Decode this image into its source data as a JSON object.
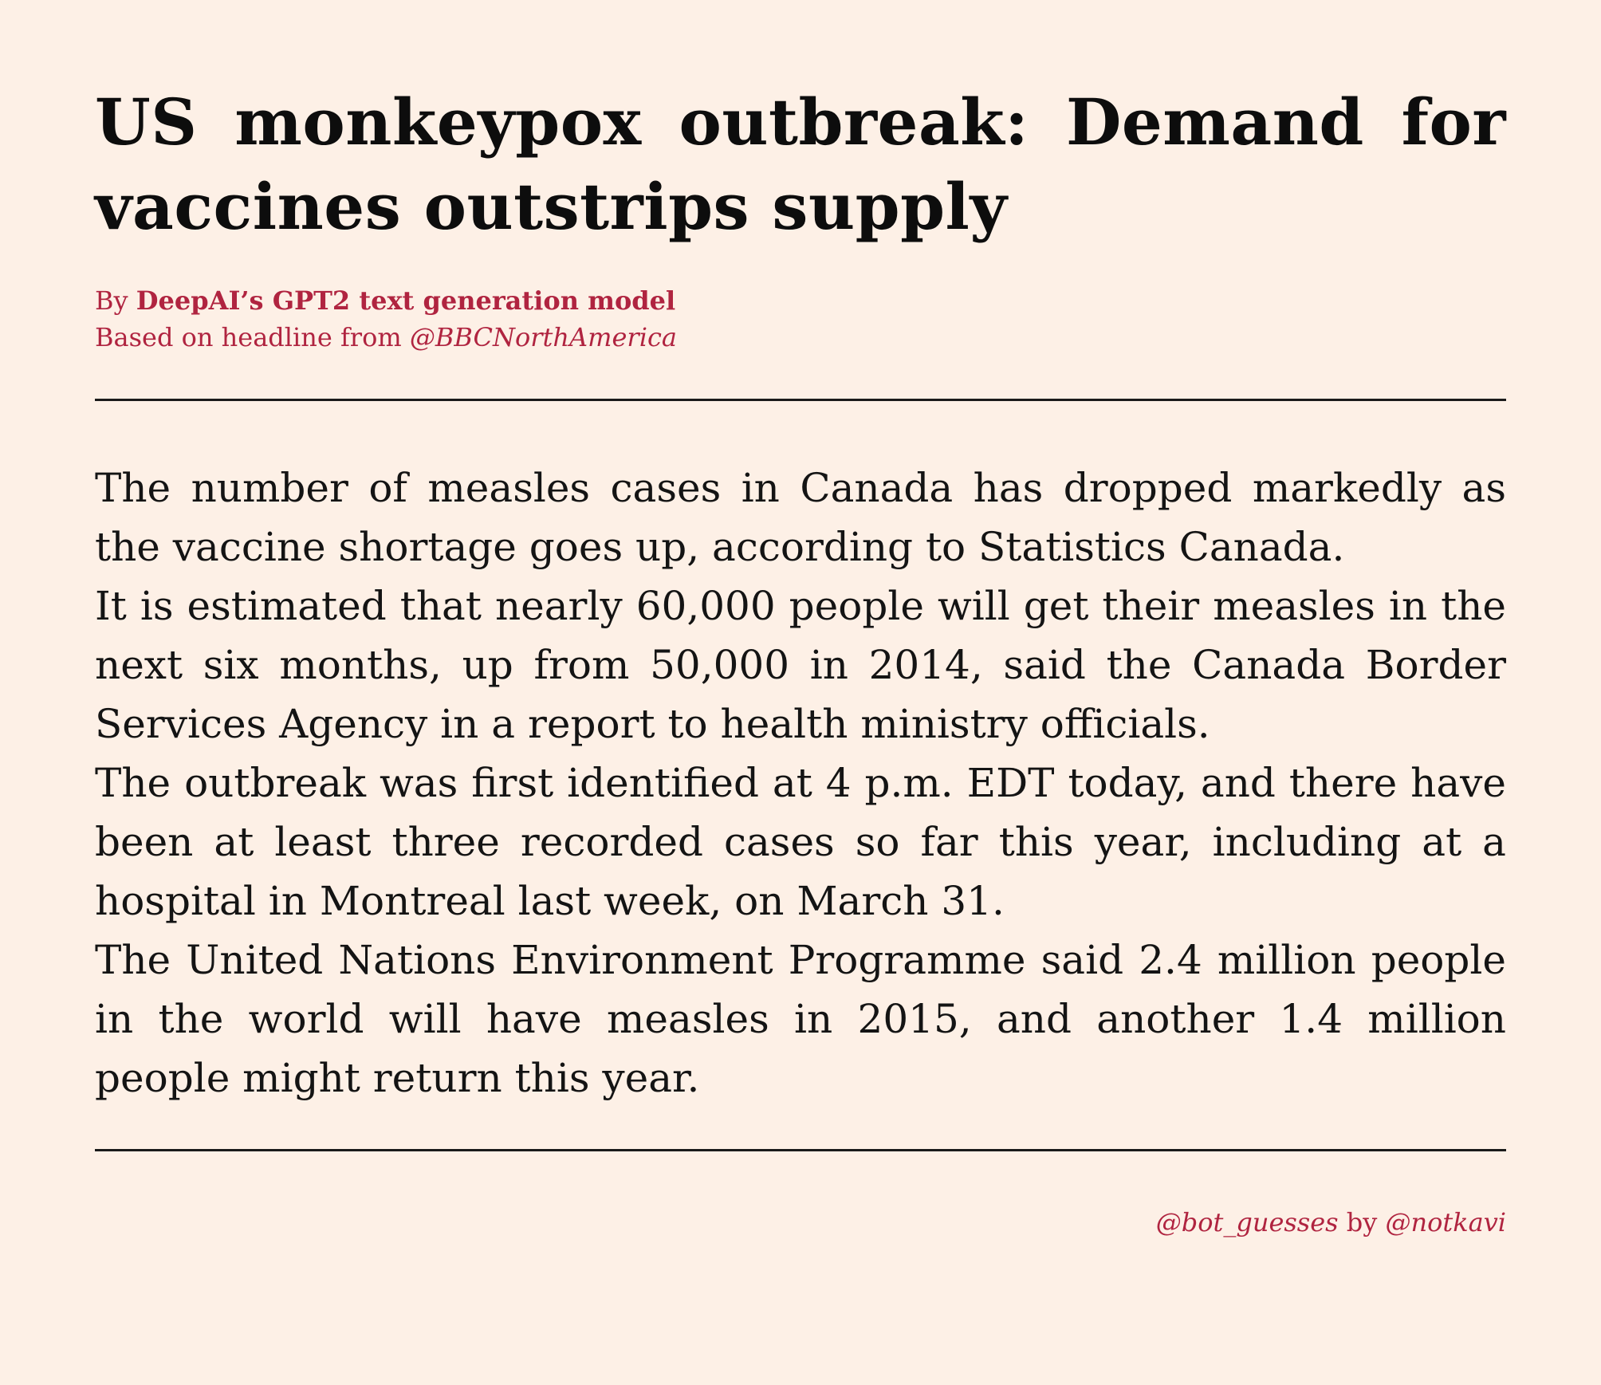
{
  "headline": "US monkeypox outbreak: Demand for vaccines outstrips supply",
  "byline": {
    "by_prefix": "By ",
    "model_name": "DeepAI’s GPT2 text generation model",
    "source_prefix": "Based on headline from ",
    "source_handle": "@BBCNorthAmerica"
  },
  "paragraphs": [
    "The number of measles cases in Canada has dropped markedly as the vaccine shortage goes up, according to Statistics Canada.",
    "It is estimated that nearly 60,000 people will get their measles in the next six months, up from 50,000 in 2014, said the Canada Border Services Agency in a report to health ministry officials.",
    "The outbreak was first identified at 4 p.m.  EDT today, and there have been at least three recorded cases so far this year, including at a hospital in Montreal last week, on March 31.",
    "The United Nations Environment Programme said 2.4 million people in the world will have measles in 2015, and another 1.4 million people might return this year."
  ],
  "credit": {
    "bot_handle": "@bot_guesses",
    "by_text": " by ",
    "author_handle": "@notkavi"
  },
  "colors": {
    "background": "#fdf0e6",
    "accent": "#b02440",
    "text": "#141414"
  }
}
